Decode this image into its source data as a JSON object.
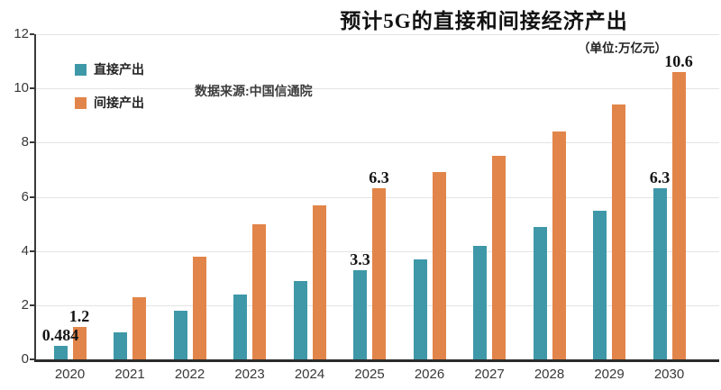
{
  "chart_data": {
    "type": "bar",
    "title": "预计5G的直接和间接经济产出",
    "unit_label": "（单位:万亿元）",
    "source": "数据来源:中国信通院",
    "categories": [
      "2020",
      "2021",
      "2022",
      "2023",
      "2024",
      "2025",
      "2026",
      "2027",
      "2028",
      "2029",
      "2030"
    ],
    "series": [
      {
        "name": "直接产出",
        "color": "#3e98a8",
        "values": [
          0.484,
          1.0,
          1.8,
          2.4,
          2.9,
          3.3,
          3.7,
          4.2,
          4.9,
          5.5,
          6.3
        ],
        "labels": {
          "0": "0.484",
          "5": "3.3",
          "10": "6.3"
        }
      },
      {
        "name": "间接产出",
        "color": "#e2854a",
        "values": [
          1.2,
          2.3,
          3.8,
          5.0,
          5.7,
          6.3,
          6.9,
          7.5,
          8.4,
          9.4,
          10.6
        ],
        "labels": {
          "0": "1.2",
          "5": "6.3",
          "10": "10.6"
        }
      }
    ],
    "ylabel": "",
    "xlabel": "",
    "ylim": [
      0,
      12
    ],
    "y_ticks": [
      0,
      2,
      4,
      6,
      8,
      10,
      12
    ],
    "grid": true,
    "legend_position": "top-left"
  }
}
